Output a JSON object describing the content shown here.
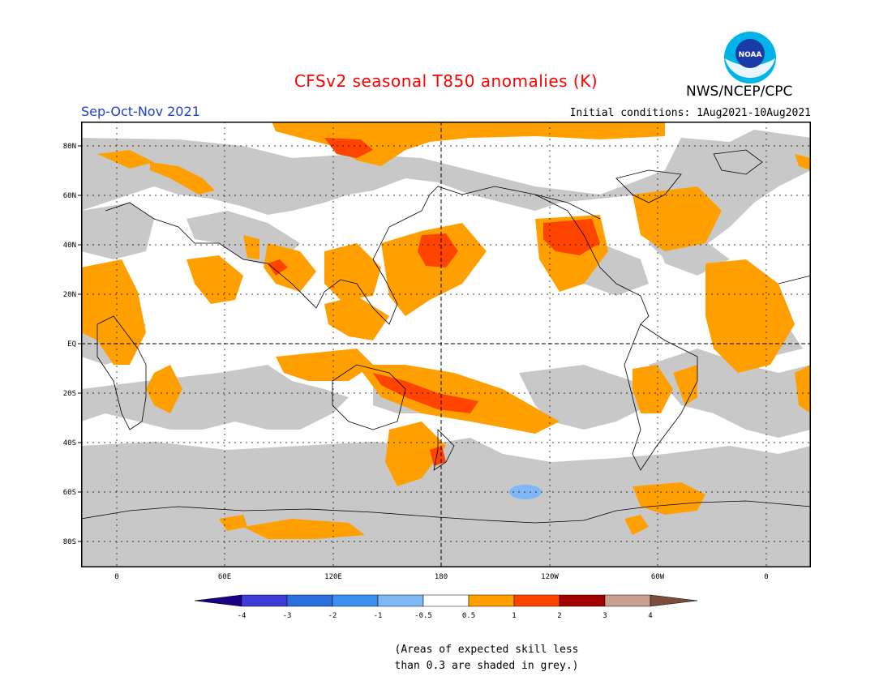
{
  "title": "CFSv2 seasonal T850 anomalies (K)",
  "season": "Sep-Oct-Nov 2021",
  "agency": "NWS/NCEP/CPC",
  "initial_conditions": "Initial conditions: 1Aug2021-10Aug2021",
  "logo_text": "NOAA",
  "footnote": "(Areas of expected skill less\nthan 0.3 are shaded in grey.)",
  "lat_labels": [
    "80N",
    "60N",
    "40N",
    "20N",
    "EQ",
    "20S",
    "40S",
    "60S",
    "80S"
  ],
  "lon_labels": [
    "0",
    "60E",
    "120E",
    "180",
    "120W",
    "60W",
    "0"
  ],
  "colorbar": {
    "labels": [
      "-4",
      "-3",
      "-2",
      "-1",
      "-0.5",
      "0.5",
      "1",
      "2",
      "3",
      "4"
    ],
    "colors": [
      "#1a0087",
      "#3c3cd6",
      "#2a6fdc",
      "#3d8ff0",
      "#7fb8f4",
      "#ffffff",
      "#ffa000",
      "#ff4400",
      "#a00000",
      "#c8a090",
      "#7a4e3a"
    ]
  },
  "colors": {
    "grey_low_skill": "#c8c8c8",
    "orange_0_5_to_1": "#ffa000",
    "red_1_to_2": "#ff4400",
    "blue_minus_1_to_minus_0_5": "#7fb8f4",
    "title": "#ff0000",
    "season": "#2040d0"
  }
}
